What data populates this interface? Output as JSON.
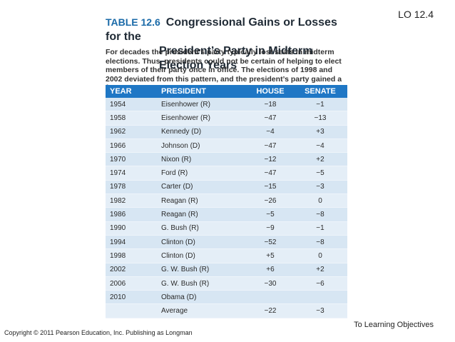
{
  "lo": "LO 12.4",
  "table_label": "TABLE 12.6",
  "title_line1": "Congressional Gains or Losses for the",
  "title_line2": "President’s Party in Midterm Election Years",
  "description": "For decades the president’s party typically lost seats in midterm elections. Thus, presidents could not be certain of helping to elect members of their party once in office. The elections of 1998 and 2002 deviated from this pattern, and the president’s party gained a few seats.",
  "headers": {
    "year": "YEAR",
    "president": "PRESIDENT",
    "house": "HOUSE",
    "senate": "SENATE"
  },
  "rows": [
    {
      "year": "1954",
      "president": "Eisenhower (R)",
      "house": "−18",
      "senate": "−1"
    },
    {
      "year": "1958",
      "president": "Eisenhower (R)",
      "house": "−47",
      "senate": "−13"
    },
    {
      "year": "1962",
      "president": "Kennedy (D)",
      "house": "−4",
      "senate": "+3"
    },
    {
      "year": "1966",
      "president": "Johnson (D)",
      "house": "−47",
      "senate": "−4"
    },
    {
      "year": "1970",
      "president": "Nixon (R)",
      "house": "−12",
      "senate": "+2"
    },
    {
      "year": "1974",
      "president": "Ford (R)",
      "house": "−47",
      "senate": "−5"
    },
    {
      "year": "1978",
      "president": "Carter (D)",
      "house": "−15",
      "senate": "−3"
    },
    {
      "year": "1982",
      "president": "Reagan (R)",
      "house": "−26",
      "senate": "0"
    },
    {
      "year": "1986",
      "president": "Reagan (R)",
      "house": "−5",
      "senate": "−8"
    },
    {
      "year": "1990",
      "president": "G. Bush (R)",
      "house": "−9",
      "senate": "−1"
    },
    {
      "year": "1994",
      "president": "Clinton (D)",
      "house": "−52",
      "senate": "−8"
    },
    {
      "year": "1998",
      "president": "Clinton (D)",
      "house": "+5",
      "senate": "0"
    },
    {
      "year": "2002",
      "president": "G. W. Bush (R)",
      "house": "+6",
      "senate": "+2"
    },
    {
      "year": "2006",
      "president": "G. W. Bush (R)",
      "house": "−30",
      "senate": "−6"
    },
    {
      "year": "2010",
      "president": "Obama (D)",
      "house": "",
      "senate": ""
    },
    {
      "year": "",
      "president": "Average",
      "house": "−22",
      "senate": "−3"
    }
  ],
  "footer": {
    "copyright": "Copyright © 2011 Pearson Education, Inc. Publishing as Longman",
    "link": "To Learning Objectives"
  }
}
